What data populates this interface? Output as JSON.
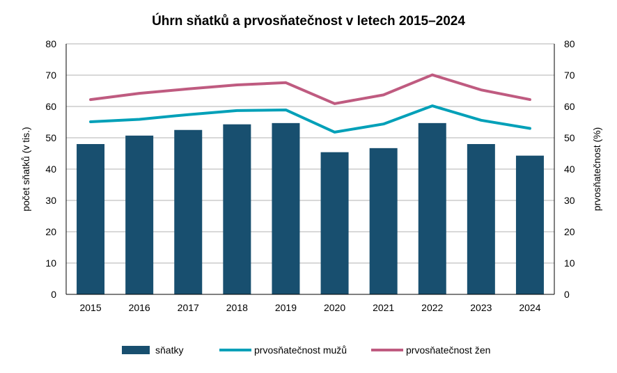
{
  "chart_data": {
    "type": "bar+line",
    "title": "Úhrn sňatků a prvosňatečnost v letech 2015–2024",
    "categories": [
      "2015",
      "2016",
      "2017",
      "2018",
      "2019",
      "2020",
      "2021",
      "2022",
      "2023",
      "2024"
    ],
    "series": [
      {
        "name": "sňatky",
        "type": "bar",
        "axis": "left",
        "color": "#184f6f",
        "values": [
          48.0,
          50.7,
          52.5,
          54.3,
          54.7,
          45.4,
          46.7,
          54.7,
          48.0,
          44.3
        ]
      },
      {
        "name": "prvosňatečnost mužů",
        "type": "line",
        "axis": "right",
        "color": "#00a0b8",
        "values": [
          55.1,
          55.9,
          57.4,
          58.7,
          58.9,
          51.8,
          54.4,
          60.2,
          55.6,
          53.0
        ]
      },
      {
        "name": "prvosňatečnost žen",
        "type": "line",
        "axis": "right",
        "color": "#bf5b80",
        "values": [
          62.2,
          64.2,
          65.6,
          66.9,
          67.6,
          60.9,
          63.7,
          70.1,
          65.3,
          62.2
        ]
      }
    ],
    "ylabel": "počet sňatků  (v tis.)",
    "y2label": "prvosňatečnost  (%)",
    "ylim": [
      0,
      80
    ],
    "y2lim": [
      0,
      80
    ],
    "yticks": [
      "0",
      "10",
      "20",
      "30",
      "40",
      "50",
      "60",
      "70",
      "80"
    ],
    "grid": true,
    "legend": "bottom"
  }
}
